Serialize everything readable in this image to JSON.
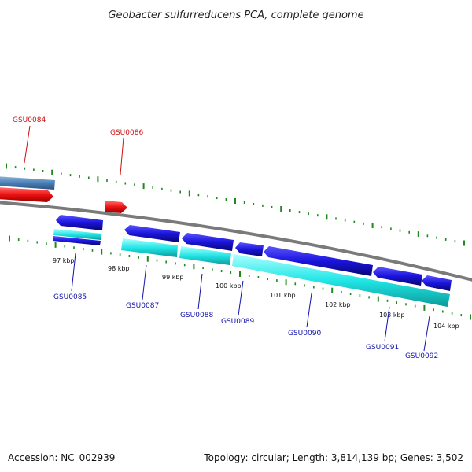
{
  "title": "Geobacter sulfurreducens PCA, complete genome",
  "footer": {
    "accession": "Accession: NC_002939",
    "summary": "Topology: circular; Length: 3,814,139 bp; Genes: 3,502"
  },
  "colors": {
    "forward_gene": "#e01010",
    "forward_gene_alt": "#4a7fb5",
    "reverse_gene": "#1a14cc",
    "reverse_cds": "#22e0e0",
    "backbone": "#7a7a7a",
    "tick": "#1e8a1e",
    "label_forward": "#cc1111",
    "label_reverse": "#1111aa"
  },
  "ticks": {
    "labels": [
      "97 kbp",
      "98 kbp",
      "99 kbp",
      "100 kbp",
      "101 kbp",
      "102 kbp",
      "103 kbp",
      "104 kbp"
    ]
  },
  "genes": {
    "forward": [
      "GSU0084",
      "GSU0086"
    ],
    "reverse": [
      "GSU0085",
      "GSU0087",
      "GSU0088",
      "GSU0089",
      "GSU0090",
      "GSU0091",
      "GSU0092"
    ]
  }
}
